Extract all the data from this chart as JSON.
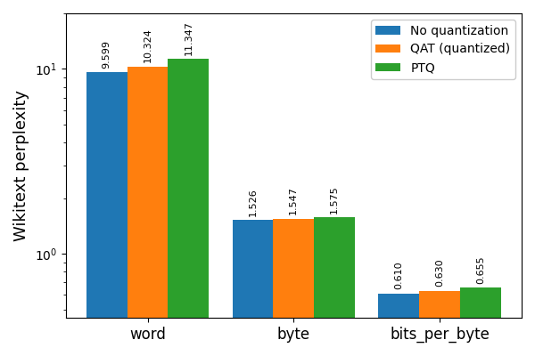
{
  "categories": [
    "word",
    "byte",
    "bits_per_byte"
  ],
  "series": [
    {
      "label": "No quantization",
      "color": "#1f77b4",
      "values": [
        9.599,
        1.526,
        0.61
      ]
    },
    {
      "label": "QAT (quantized)",
      "color": "#ff7f0e",
      "values": [
        10.324,
        1.547,
        0.63
      ]
    },
    {
      "label": "PTQ",
      "color": "#2ca02c",
      "values": [
        11.347,
        1.575,
        0.655
      ]
    }
  ],
  "ylabel": "Wikitext perplexity",
  "ylim": [
    0.45,
    20
  ],
  "bar_width": 0.28,
  "label_fontsize": 8,
  "axis_label_fontsize": 13
}
